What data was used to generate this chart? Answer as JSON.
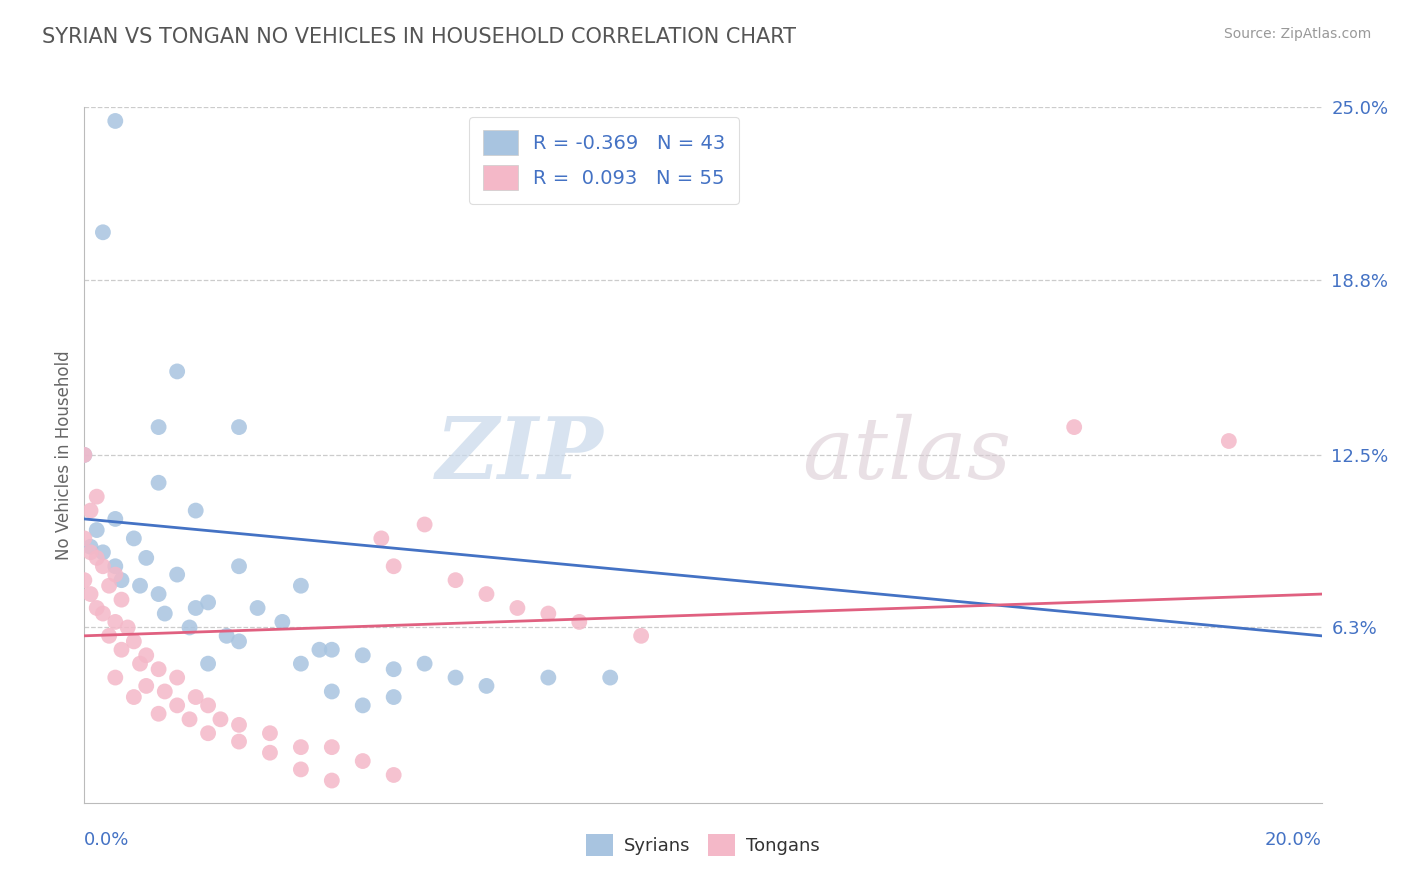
{
  "title": "SYRIAN VS TONGAN NO VEHICLES IN HOUSEHOLD CORRELATION CHART",
  "source": "Source: ZipAtlas.com",
  "ylabel": "No Vehicles in Household",
  "xlim": [
    0.0,
    20.0
  ],
  "ylim": [
    0.0,
    25.0
  ],
  "yticks_right": [
    6.3,
    12.5,
    18.8,
    25.0
  ],
  "ytick_labels_right": [
    "6.3%",
    "12.5%",
    "18.8%",
    "25.0%"
  ],
  "syrian_color": "#a8c4e0",
  "tongan_color": "#f4b8c8",
  "syrian_line_color": "#4472c4",
  "tongan_line_color": "#e06080",
  "label_color": "#4472c4",
  "legend_syrian_label": "R = -0.369   N = 43",
  "legend_tongan_label": "R =  0.093   N = 55",
  "watermark_zip": "ZIP",
  "watermark_atlas": "atlas",
  "syrian_line": [
    0.0,
    10.2,
    20.0,
    6.0
  ],
  "tongan_line": [
    0.0,
    6.0,
    20.0,
    7.5
  ],
  "syrian_points": [
    [
      0.5,
      24.5
    ],
    [
      0.3,
      20.5
    ],
    [
      1.5,
      15.5
    ],
    [
      1.2,
      13.5
    ],
    [
      2.5,
      13.5
    ],
    [
      0.0,
      12.5
    ],
    [
      1.2,
      11.5
    ],
    [
      1.8,
      10.5
    ],
    [
      0.5,
      10.2
    ],
    [
      0.2,
      9.8
    ],
    [
      0.8,
      9.5
    ],
    [
      0.1,
      9.2
    ],
    [
      0.3,
      9.0
    ],
    [
      1.0,
      8.8
    ],
    [
      0.5,
      8.5
    ],
    [
      2.5,
      8.5
    ],
    [
      1.5,
      8.2
    ],
    [
      0.6,
      8.0
    ],
    [
      0.9,
      7.8
    ],
    [
      3.5,
      7.8
    ],
    [
      1.2,
      7.5
    ],
    [
      2.0,
      7.2
    ],
    [
      1.8,
      7.0
    ],
    [
      2.8,
      7.0
    ],
    [
      1.3,
      6.8
    ],
    [
      3.2,
      6.5
    ],
    [
      1.7,
      6.3
    ],
    [
      2.3,
      6.0
    ],
    [
      2.5,
      5.8
    ],
    [
      3.8,
      5.5
    ],
    [
      4.0,
      5.5
    ],
    [
      4.5,
      5.3
    ],
    [
      2.0,
      5.0
    ],
    [
      3.5,
      5.0
    ],
    [
      5.5,
      5.0
    ],
    [
      5.0,
      4.8
    ],
    [
      6.0,
      4.5
    ],
    [
      7.5,
      4.5
    ],
    [
      8.5,
      4.5
    ],
    [
      6.5,
      4.2
    ],
    [
      4.0,
      4.0
    ],
    [
      5.0,
      3.8
    ],
    [
      4.5,
      3.5
    ]
  ],
  "tongan_points": [
    [
      0.0,
      12.5
    ],
    [
      0.2,
      11.0
    ],
    [
      0.1,
      10.5
    ],
    [
      0.0,
      9.5
    ],
    [
      0.1,
      9.0
    ],
    [
      0.2,
      8.8
    ],
    [
      0.3,
      8.5
    ],
    [
      0.5,
      8.2
    ],
    [
      0.0,
      8.0
    ],
    [
      0.4,
      7.8
    ],
    [
      0.1,
      7.5
    ],
    [
      0.6,
      7.3
    ],
    [
      0.2,
      7.0
    ],
    [
      0.3,
      6.8
    ],
    [
      0.5,
      6.5
    ],
    [
      0.7,
      6.3
    ],
    [
      0.4,
      6.0
    ],
    [
      0.8,
      5.8
    ],
    [
      0.6,
      5.5
    ],
    [
      1.0,
      5.3
    ],
    [
      0.9,
      5.0
    ],
    [
      1.2,
      4.8
    ],
    [
      0.5,
      4.5
    ],
    [
      1.5,
      4.5
    ],
    [
      1.0,
      4.2
    ],
    [
      1.3,
      4.0
    ],
    [
      0.8,
      3.8
    ],
    [
      1.8,
      3.8
    ],
    [
      1.5,
      3.5
    ],
    [
      2.0,
      3.5
    ],
    [
      1.2,
      3.2
    ],
    [
      2.2,
      3.0
    ],
    [
      1.7,
      3.0
    ],
    [
      2.5,
      2.8
    ],
    [
      2.0,
      2.5
    ],
    [
      3.0,
      2.5
    ],
    [
      2.5,
      2.2
    ],
    [
      3.5,
      2.0
    ],
    [
      4.0,
      2.0
    ],
    [
      3.0,
      1.8
    ],
    [
      4.5,
      1.5
    ],
    [
      3.5,
      1.2
    ],
    [
      5.0,
      1.0
    ],
    [
      4.0,
      0.8
    ],
    [
      5.5,
      10.0
    ],
    [
      4.8,
      9.5
    ],
    [
      5.0,
      8.5
    ],
    [
      6.0,
      8.0
    ],
    [
      6.5,
      7.5
    ],
    [
      7.0,
      7.0
    ],
    [
      7.5,
      6.8
    ],
    [
      8.0,
      6.5
    ],
    [
      9.0,
      6.0
    ],
    [
      16.0,
      13.5
    ],
    [
      18.5,
      13.0
    ]
  ]
}
